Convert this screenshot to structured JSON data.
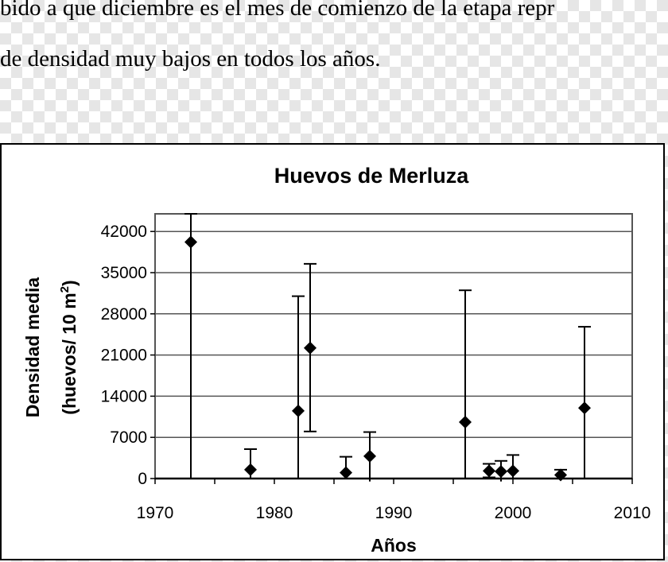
{
  "document": {
    "line1": "bido a que diciembre es el mes de comienzo de la etapa repr",
    "line2": "de densidad muy bajos en todos los años."
  },
  "chart_data": {
    "type": "scatter",
    "title": "Huevos de Merluza",
    "xlabel": "Años",
    "ylabel_line1": "Densidad media",
    "ylabel_line2_prefix": "(huevos/ 10 m",
    "ylabel_line2_sup": "2",
    "ylabel_line2_suffix": ")",
    "xlim": [
      1970,
      2010
    ],
    "ylim": [
      0,
      45000
    ],
    "xticks": [
      "1970",
      "1980",
      "1990",
      "2000",
      "2010"
    ],
    "yticks": [
      "0",
      "7000",
      "14000",
      "21000",
      "28000",
      "35000",
      "42000"
    ],
    "grid": "horizontal",
    "error_bars": true,
    "marker": "diamond",
    "points": [
      {
        "x": 1973,
        "y": 40200,
        "low": 0,
        "high": 45000
      },
      {
        "x": 1978,
        "y": 1500,
        "low": 0,
        "high": 5000
      },
      {
        "x": 1982,
        "y": 11500,
        "low": 0,
        "high": 31000
      },
      {
        "x": 1983,
        "y": 22200,
        "low": 8000,
        "high": 36500
      },
      {
        "x": 1986,
        "y": 1000,
        "low": 0,
        "high": 3700
      },
      {
        "x": 1988,
        "y": 3800,
        "low": -500,
        "high": 7900
      },
      {
        "x": 1996,
        "y": 9600,
        "low": 0,
        "high": 32000
      },
      {
        "x": 1998,
        "y": 1300,
        "low": 200,
        "high": 2500
      },
      {
        "x": 1999,
        "y": 1200,
        "low": -500,
        "high": 3000
      },
      {
        "x": 2000,
        "y": 1300,
        "low": 0,
        "high": 4000
      },
      {
        "x": 2004,
        "y": 600,
        "low": -100,
        "high": 1500
      },
      {
        "x": 2006,
        "y": 12000,
        "low": 0,
        "high": 25800
      }
    ]
  }
}
